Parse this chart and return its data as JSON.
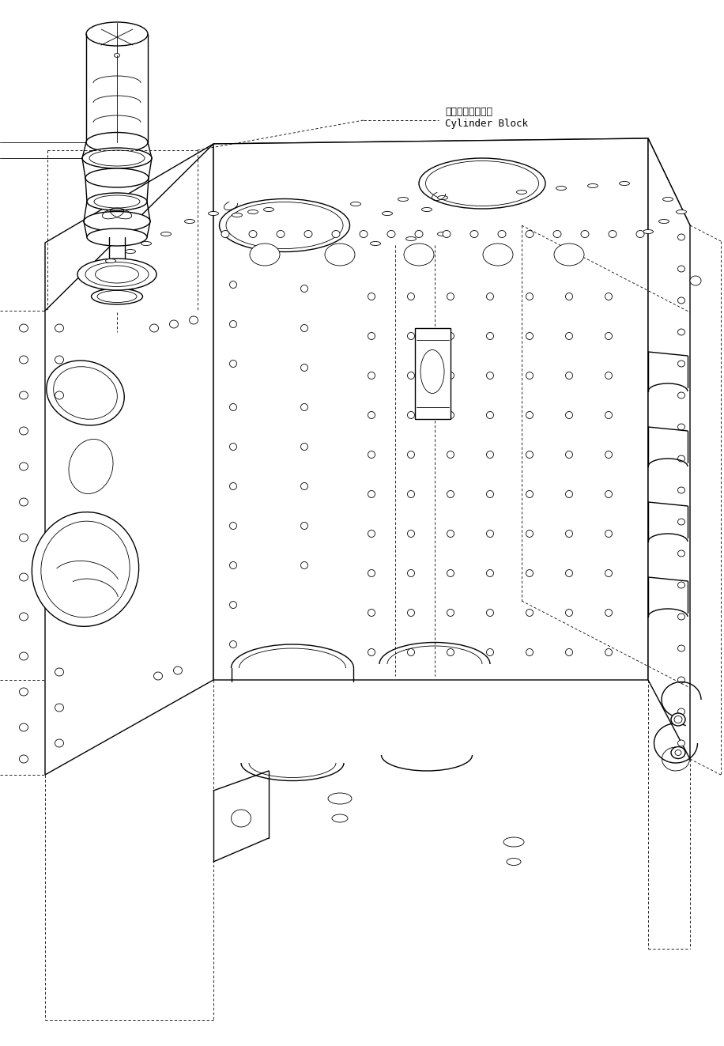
{
  "background_color": "#ffffff",
  "line_color": "#000000",
  "label_japanese": "シリンダブロック",
  "label_english": "Cylinder Block",
  "figsize": [
    9.16,
    13.23
  ],
  "dpi": 100,
  "lw_main": 1.0,
  "lw_thin": 0.6,
  "lw_thick": 1.4
}
